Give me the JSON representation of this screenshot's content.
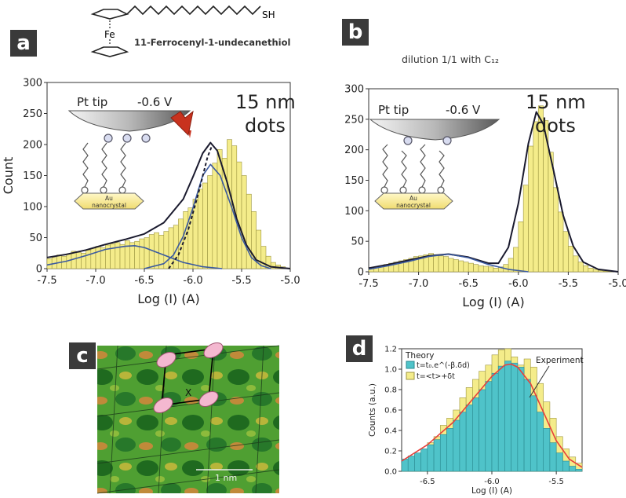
{
  "panels": {
    "a": "a",
    "b": "b",
    "c": "c",
    "d": "d"
  },
  "molecule": {
    "name": "11-Ferrocenyl-1-undecanethiol",
    "fe": "Fe",
    "sh": "SH"
  },
  "panel_b_subtitle": "dilution 1/1 with C₁₂",
  "inset": {
    "tip_label": "Pt tip",
    "voltage": "-0.6 V",
    "au_line1": "Au",
    "au_line2": "nanocrystal",
    "dots_line1": "15 nm",
    "dots_line2": "dots"
  },
  "micrograph": {
    "scale_label": "1 nm",
    "marker": "X"
  },
  "colors": {
    "bar_fill": "#f4ec8a",
    "bar_stroke": "#9c9540",
    "fit_black": "#1a1a2e",
    "fit_blue": "#3b5aa0",
    "arrow": "#c8321e",
    "cyan": "#4fc3c9",
    "fit_red": "#e8403a",
    "label_bg": "#3a3a3a"
  },
  "chart_data": [
    {
      "id": "a",
      "type": "bar",
      "xlabel": "Log (I) (A)",
      "ylabel": "Count",
      "xlim": [
        -7.5,
        -5.0
      ],
      "ylim": [
        0,
        300
      ],
      "xticks": [
        "-7.5",
        "-7.0",
        "-6.5",
        "-6.0",
        "-5.5",
        "-5.0"
      ],
      "yticks": [
        "0",
        "50",
        "100",
        "150",
        "200",
        "250",
        "300"
      ],
      "bin_start": -7.5,
      "bin_width": 0.05,
      "values": [
        16,
        18,
        22,
        20,
        24,
        28,
        26,
        25,
        30,
        33,
        36,
        34,
        38,
        40,
        42,
        39,
        45,
        42,
        44,
        48,
        50,
        55,
        58,
        54,
        60,
        66,
        70,
        80,
        92,
        98,
        112,
        128,
        138,
        150,
        170,
        192,
        178,
        208,
        198,
        172,
        150,
        120,
        92,
        62,
        36,
        20,
        10,
        6,
        3,
        1
      ],
      "fits": [
        {
          "color": "fit_black",
          "dash": false,
          "points": [
            [
              -7.5,
              18
            ],
            [
              -7.3,
              23
            ],
            [
              -7.1,
              30
            ],
            [
              -6.9,
              39
            ],
            [
              -6.7,
              47
            ],
            [
              -6.5,
              56
            ],
            [
              -6.3,
              74
            ],
            [
              -6.1,
              112
            ],
            [
              -6.0,
              148
            ],
            [
              -5.9,
              186
            ],
            [
              -5.82,
              203
            ],
            [
              -5.75,
              190
            ],
            [
              -5.65,
              140
            ],
            [
              -5.55,
              80
            ],
            [
              -5.45,
              38
            ],
            [
              -5.35,
              14
            ],
            [
              -5.2,
              3
            ],
            [
              -5.0,
              0
            ]
          ]
        },
        {
          "color": "fit_blue",
          "dash": false,
          "points": [
            [
              -7.5,
              6
            ],
            [
              -7.3,
              12
            ],
            [
              -7.1,
              21
            ],
            [
              -6.9,
              31
            ],
            [
              -6.7,
              36
            ],
            [
              -6.6,
              37
            ],
            [
              -6.5,
              34
            ],
            [
              -6.3,
              22
            ],
            [
              -6.1,
              10
            ],
            [
              -5.9,
              3
            ],
            [
              -5.7,
              0
            ]
          ]
        },
        {
          "color": "fit_blue",
          "dash": false,
          "points": [
            [
              -6.5,
              0
            ],
            [
              -6.3,
              8
            ],
            [
              -6.2,
              22
            ],
            [
              -6.1,
              52
            ],
            [
              -6.0,
              98
            ],
            [
              -5.9,
              150
            ],
            [
              -5.82,
              168
            ],
            [
              -5.72,
              150
            ],
            [
              -5.6,
              98
            ],
            [
              -5.5,
              50
            ],
            [
              -5.4,
              18
            ],
            [
              -5.3,
              5
            ],
            [
              -5.2,
              0
            ]
          ]
        },
        {
          "color": "fit_black",
          "dash": true,
          "points": [
            [
              -6.25,
              0
            ],
            [
              -6.15,
              22
            ],
            [
              -6.05,
              62
            ],
            [
              -5.95,
              118
            ],
            [
              -5.85,
              180
            ],
            [
              -5.8,
              200
            ]
          ]
        }
      ]
    },
    {
      "id": "b",
      "type": "bar",
      "xlabel": "Log (I) (A)",
      "ylabel": "",
      "xlim": [
        -7.5,
        -5.0
      ],
      "ylim": [
        0,
        300
      ],
      "xticks": [
        "-7.5",
        "-7.0",
        "-6.5",
        "-6.0",
        "-5.5",
        "-5.0"
      ],
      "yticks": [
        "0",
        "50",
        "100",
        "150",
        "200",
        "250",
        "300"
      ],
      "bin_start": -7.5,
      "bin_width": 0.05,
      "values": [
        6,
        8,
        10,
        12,
        14,
        16,
        18,
        20,
        22,
        25,
        26,
        28,
        30,
        28,
        26,
        25,
        22,
        20,
        18,
        16,
        14,
        12,
        10,
        9,
        8,
        6,
        8,
        12,
        22,
        40,
        82,
        142,
        206,
        246,
        272,
        248,
        196,
        138,
        98,
        66,
        42,
        26,
        16,
        10,
        6,
        4,
        2,
        1,
        1,
        0
      ],
      "fits": [
        {
          "color": "fit_black",
          "dash": false,
          "points": [
            [
              -7.5,
              6
            ],
            [
              -7.3,
              12
            ],
            [
              -7.1,
              19
            ],
            [
              -6.9,
              26
            ],
            [
              -6.7,
              29
            ],
            [
              -6.5,
              24
            ],
            [
              -6.3,
              14
            ],
            [
              -6.2,
              14
            ],
            [
              -6.1,
              40
            ],
            [
              -6.0,
              112
            ],
            [
              -5.9,
              210
            ],
            [
              -5.82,
              262
            ],
            [
              -5.75,
              242
            ],
            [
              -5.65,
              168
            ],
            [
              -5.55,
              92
            ],
            [
              -5.45,
              42
            ],
            [
              -5.35,
              16
            ],
            [
              -5.2,
              4
            ],
            [
              -5.0,
              0
            ]
          ]
        },
        {
          "color": "fit_blue",
          "dash": false,
          "points": [
            [
              -7.5,
              4
            ],
            [
              -7.3,
              10
            ],
            [
              -7.1,
              17
            ],
            [
              -6.9,
              25
            ],
            [
              -6.7,
              29
            ],
            [
              -6.5,
              23
            ],
            [
              -6.3,
              12
            ],
            [
              -6.1,
              4
            ],
            [
              -5.9,
              0
            ]
          ]
        }
      ]
    },
    {
      "id": "d",
      "type": "bar",
      "xlabel": "Log (I) (A)",
      "ylabel": "Counts (a.u.)",
      "xlim": [
        -6.7,
        -5.3
      ],
      "ylim": [
        0,
        1.2
      ],
      "xticks": [
        "-6.5",
        "-6.0",
        "-5.5"
      ],
      "yticks": [
        "0.0",
        "0.2",
        "0.4",
        "0.6",
        "0.8",
        "1.0",
        "1.2"
      ],
      "legend_title": "Theory",
      "legend": [
        "t=t₀.e^(-β.δd)",
        "t=<t>+δt"
      ],
      "annotation": "Experiment",
      "bin_start": -6.7,
      "bin_width": 0.05,
      "experiment": [
        0.08,
        0.12,
        0.16,
        0.21,
        0.28,
        0.34,
        0.45,
        0.52,
        0.6,
        0.72,
        0.82,
        0.9,
        0.98,
        1.04,
        1.14,
        1.19,
        1.2,
        1.12,
        1.04,
        1.1,
        1.02,
        0.86,
        0.68,
        0.52,
        0.34,
        0.22,
        0.14,
        0.08
      ],
      "theory": [
        0.12,
        0.15,
        0.18,
        0.22,
        0.26,
        0.31,
        0.36,
        0.42,
        0.5,
        0.58,
        0.65,
        0.72,
        0.8,
        0.88,
        0.96,
        1.03,
        1.08,
        1.06,
        1.02,
        0.9,
        0.74,
        0.58,
        0.42,
        0.28,
        0.18,
        0.1,
        0.05,
        0.02
      ],
      "fit": {
        "color": "fit_red",
        "points": [
          [
            -6.7,
            0.1
          ],
          [
            -6.5,
            0.26
          ],
          [
            -6.3,
            0.48
          ],
          [
            -6.1,
            0.78
          ],
          [
            -6.0,
            0.93
          ],
          [
            -5.9,
            1.04
          ],
          [
            -5.85,
            1.05
          ],
          [
            -5.8,
            1.02
          ],
          [
            -5.7,
            0.86
          ],
          [
            -5.6,
            0.58
          ],
          [
            -5.5,
            0.3
          ],
          [
            -5.4,
            0.12
          ],
          [
            -5.3,
            0.04
          ]
        ]
      }
    }
  ]
}
